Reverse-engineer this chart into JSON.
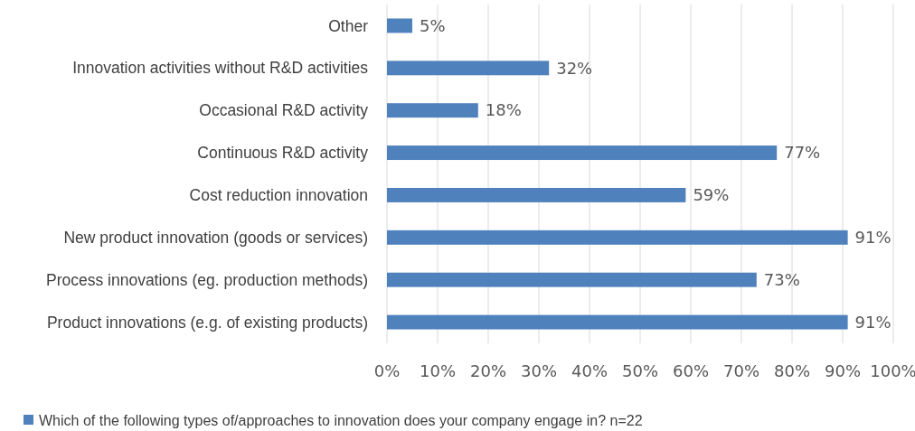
{
  "chart_data": {
    "type": "bar",
    "orientation": "horizontal",
    "categories": [
      "Other",
      "Innovation activities without R&D activities",
      "Occasional R&D activity",
      "Continuous R&D activity",
      "Cost reduction innovation",
      "New product innovation (goods or services)",
      "Process innovations (eg. production methods)",
      "Product innovations (e.g. of existing products)"
    ],
    "series": [
      {
        "name": "Which of the following types of/approaches to innovation does your company engage in? n=22",
        "color": "#4f81bd",
        "values": [
          5,
          32,
          18,
          77,
          59,
          91,
          73,
          91
        ],
        "value_labels": [
          "5%",
          "32%",
          "18%",
          "77%",
          "59%",
          "91%",
          "73%",
          "91%"
        ]
      }
    ],
    "xlim": [
      0,
      100
    ],
    "xticks": [
      {
        "value": 0,
        "label": "0%"
      },
      {
        "value": 10,
        "label": "10%"
      },
      {
        "value": 20,
        "label": "20%"
      },
      {
        "value": 30,
        "label": "30%"
      },
      {
        "value": 40,
        "label": "40%"
      },
      {
        "value": 50,
        "label": "50%"
      },
      {
        "value": 60,
        "label": "60%"
      },
      {
        "value": 70,
        "label": "70%"
      },
      {
        "value": 80,
        "label": "80%"
      },
      {
        "value": 90,
        "label": "90%"
      },
      {
        "value": 100,
        "label": "100%"
      }
    ],
    "grid": "x",
    "legend": "bottom"
  }
}
